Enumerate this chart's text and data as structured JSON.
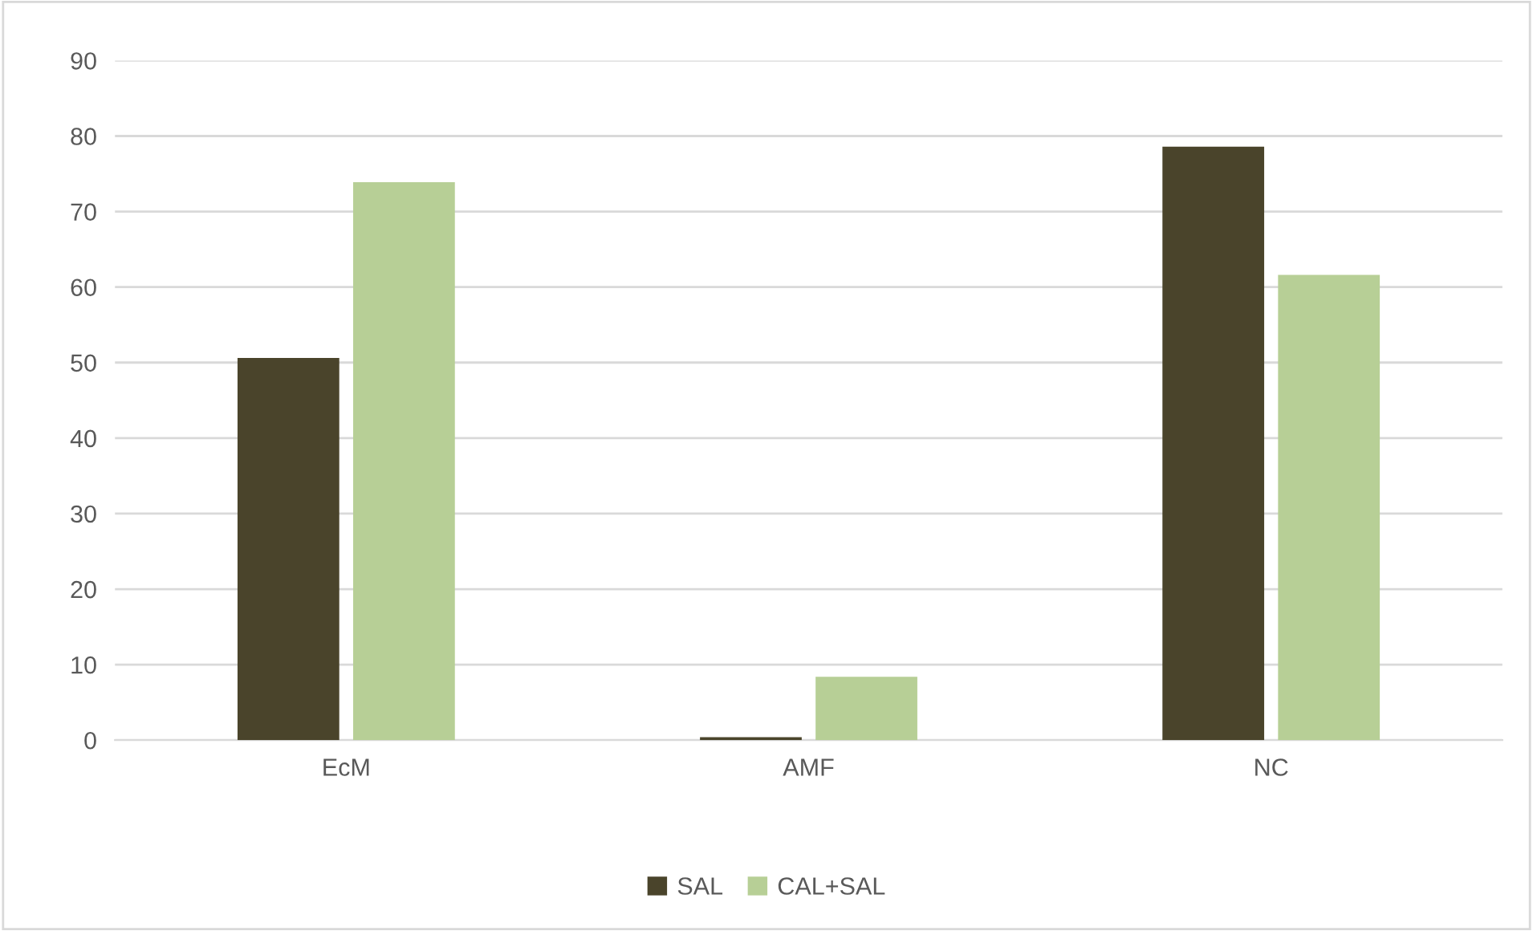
{
  "chart_data": {
    "type": "bar",
    "categories": [
      "EcM",
      "AMF",
      "NC"
    ],
    "series": [
      {
        "name": "SAL",
        "color": "#4a442b",
        "values": [
          50.6,
          0.4,
          78.6
        ]
      },
      {
        "name": "CAL+SAL",
        "color": "#b7cf96",
        "values": [
          73.9,
          8.4,
          61.6
        ]
      }
    ],
    "ylim": [
      0,
      90
    ],
    "yticks": [
      0,
      10,
      20,
      30,
      40,
      50,
      60,
      70,
      80,
      90
    ],
    "grid": "y",
    "legend": "bottom"
  }
}
